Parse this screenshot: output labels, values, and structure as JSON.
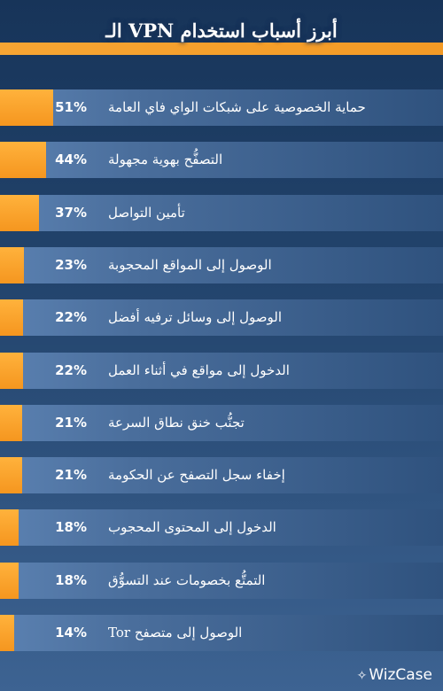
{
  "chart_data": {
    "type": "bar",
    "orientation": "horizontal",
    "title": "أبرز أسباب استخدام VPN الـ",
    "categories": [
      "حماية الخصوصية على شبكات الواي فاي العامة",
      "التصفُّح بهوية مجهولة",
      "تأمين التواصل",
      "الوصول إلى المواقع المحجوبة",
      "الوصول إلى وسائل ترفيه أفضل",
      "الدخول إلى مواقع في أثناء العمل",
      "تجنُّب خنق نطاق السرعة",
      "إخفاء سجل التصفح عن الحكومة",
      "الدخول إلى المحتوى المحجوب",
      "التمتُّع بخصومات عند التسوُّق",
      "الوصول إلى متصفح Tor"
    ],
    "values": [
      51,
      44,
      37,
      23,
      22,
      22,
      21,
      21,
      18,
      18,
      14
    ],
    "value_labels": [
      "51%",
      "44%",
      "37%",
      "23%",
      "22%",
      "22%",
      "21%",
      "21%",
      "18%",
      "18%",
      "14%"
    ],
    "xlim": [
      0,
      100
    ],
    "colors": {
      "bar": "#f7a533",
      "track": "#4a6e9c",
      "background": "#1f3d66"
    }
  },
  "brand": {
    "name": "WizCase",
    "icon": "sparkle-icon"
  }
}
